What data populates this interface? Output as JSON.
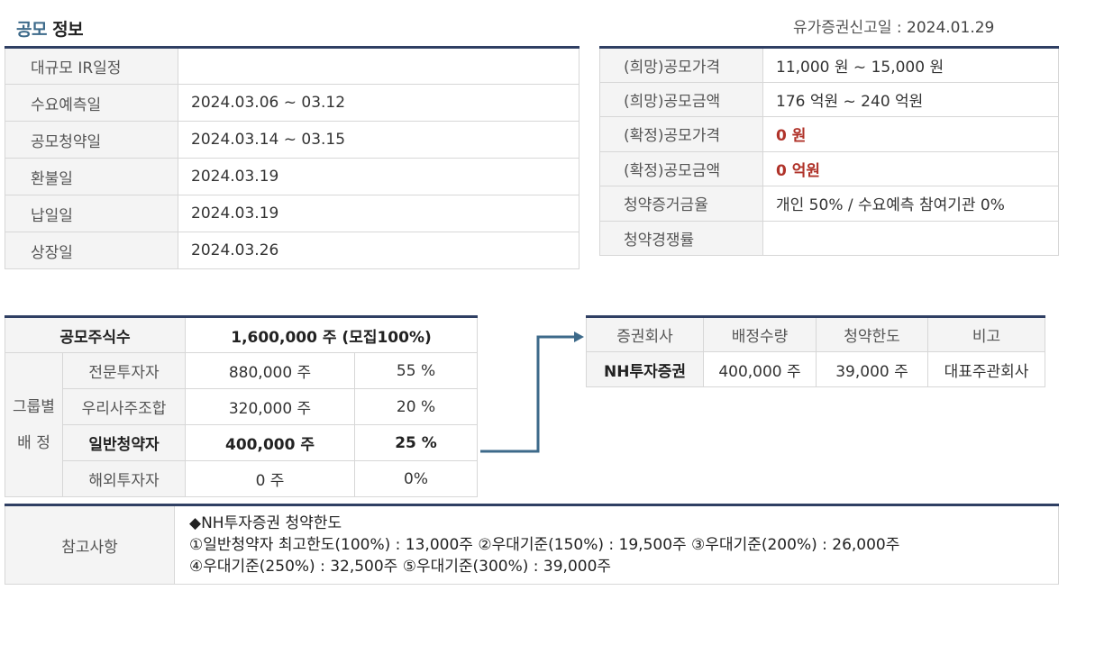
{
  "header": {
    "title_part1": "공모",
    "title_part2": "정보",
    "filing_label": "유가증권신고일 : ",
    "filing_date": "2024.01.29"
  },
  "schedule": {
    "rows": [
      {
        "label": "대규모 IR일정",
        "value": ""
      },
      {
        "label": "수요예측일",
        "value": "2024.03.06 ~ 03.12"
      },
      {
        "label": "공모청약일",
        "value": "2024.03.14 ~ 03.15"
      },
      {
        "label": "환불일",
        "value": "2024.03.19"
      },
      {
        "label": "납일일",
        "value": "2024.03.19"
      },
      {
        "label": "상장일",
        "value": "2024.03.26"
      }
    ]
  },
  "pricing": {
    "rows": [
      {
        "label": "(희망)공모가격",
        "value": "11,000 원 ~ 15,000 원"
      },
      {
        "label": "(희망)공모금액",
        "value": "176  억원   ~ 240  억원"
      },
      {
        "label": "(확정)공모가격",
        "value": "0 원"
      },
      {
        "label": "(확정)공모금액",
        "value": "0 억원"
      },
      {
        "label": "청약증거금율",
        "value": "개인 50% / 수요예측 참여기관 0%"
      },
      {
        "label": "청약경쟁률",
        "value": ""
      }
    ]
  },
  "allocation": {
    "total_label": "공모주식수",
    "total_value": "1,600,000  주  (모집100%)",
    "group_label_line1": "그룹별",
    "group_label_line2": "배  정",
    "rows": [
      {
        "label": "전문투자자",
        "shares": "880,000 주",
        "pct": "55 %"
      },
      {
        "label": "우리사주조합",
        "shares": "320,000 주",
        "pct": "20 %"
      },
      {
        "label": "일반청약자",
        "shares": "400,000 주",
        "pct": "25 %"
      },
      {
        "label": "해외투자자",
        "shares": "0 주",
        "pct": "0%"
      }
    ]
  },
  "underwriters": {
    "headers": [
      "증권회사",
      "배정수량",
      "청약한도",
      "비고"
    ],
    "rows": [
      {
        "company": "NH투자증권",
        "allocation": "400,000 주",
        "limit": "39,000 주",
        "note": "대표주관회사"
      }
    ]
  },
  "reference": {
    "label": "참고사항",
    "lines": [
      "◆NH투자증권 청약한도",
      "①일반청약자 최고한도(100%) : 13,000주 ②우대기준(150%) : 19,500주 ③우대기준(200%) : 26,000주",
      "④우대기준(250%) : 32,500주 ⑤우대기준(300%) : 39,000주"
    ]
  },
  "colors": {
    "table_top_border": "#2f3f63",
    "label_bg": "#f4f4f4",
    "highlight_red": "#b0332a",
    "arrow": "#3d6a8a",
    "title_blue": "#3d6a8a"
  },
  "icons": {
    "connector": "arrow-right-icon"
  }
}
